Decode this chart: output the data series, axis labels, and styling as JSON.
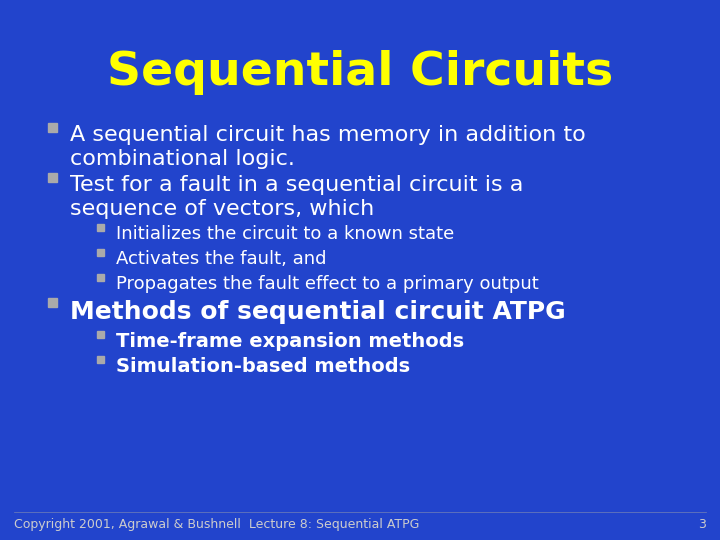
{
  "title": "Sequential Circuits",
  "bg_color": "#2244cc",
  "title_color": "#ffff00",
  "title_fontsize": 34,
  "bullet_color": "#ffffff",
  "bullet_marker_color": "#aaaaaa",
  "bullet_fontsize": 16,
  "subbullet_fontsize": 13,
  "bold_bullet_fontsize": 18,
  "bold_subbullet_fontsize": 14,
  "copyright_text": "Copyright 2001, Agrawal & Bushnell  Lecture 8: Sequential ATPG",
  "page_number": "3",
  "copyright_fontsize": 9,
  "bullets": [
    {
      "level": 1,
      "text": "A sequential circuit has memory in addition to\ncombinational logic.",
      "bold": false
    },
    {
      "level": 1,
      "text": "Test for a fault in a sequential circuit is a\nsequence of vectors, which",
      "bold": false
    },
    {
      "level": 2,
      "text": "Initializes the circuit to a known state",
      "bold": false
    },
    {
      "level": 2,
      "text": "Activates the fault, and",
      "bold": false
    },
    {
      "level": 2,
      "text": "Propagates the fault effect to a primary output",
      "bold": false
    },
    {
      "level": 1,
      "text": "Methods of sequential circuit ATPG",
      "bold": true
    },
    {
      "level": 2,
      "text": "Time-frame expansion methods",
      "bold": true
    },
    {
      "level": 2,
      "text": "Simulation-based methods",
      "bold": true
    }
  ]
}
